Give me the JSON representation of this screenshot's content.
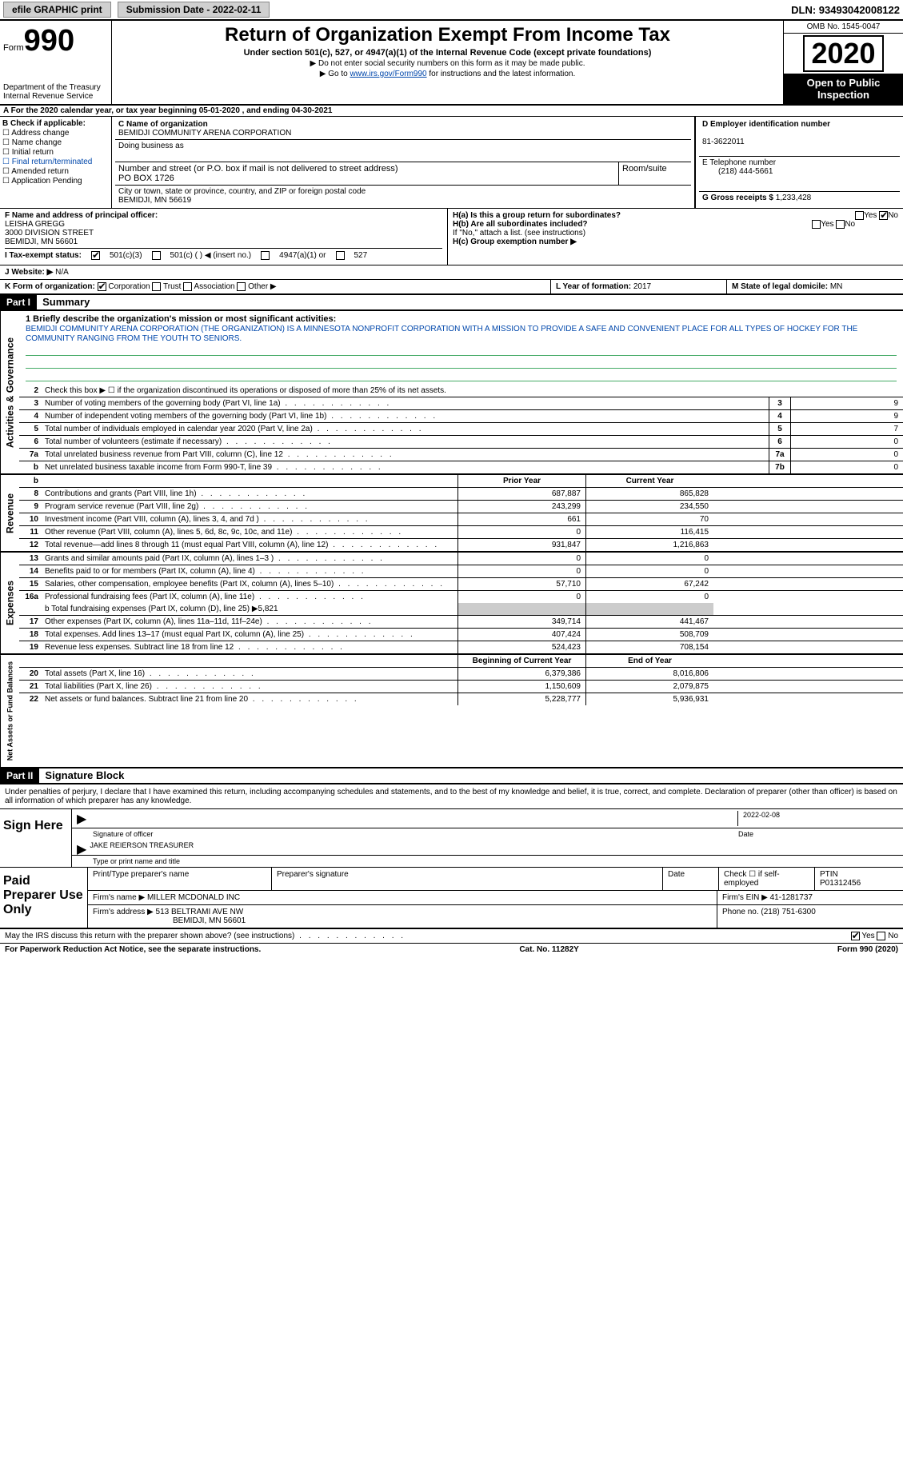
{
  "top": {
    "efile": "efile GRAPHIC print",
    "submission": "Submission Date - 2022-02-11",
    "dln": "DLN: 93493042008122"
  },
  "header": {
    "form_label": "Form",
    "form_num": "990",
    "title": "Return of Organization Exempt From Income Tax",
    "subtitle": "Under section 501(c), 527, or 4947(a)(1) of the Internal Revenue Code (except private foundations)",
    "note1": "▶ Do not enter social security numbers on this form as it may be made public.",
    "note2": "▶ Go to ",
    "link": "www.irs.gov/Form990",
    "note3": " for instructions and the latest information.",
    "dept": "Department of the Treasury\nInternal Revenue Service",
    "omb": "OMB No. 1545-0047",
    "year": "2020",
    "open": "Open to Public Inspection"
  },
  "rowA": "A For the 2020 calendar year, or tax year beginning 05-01-2020   , and ending 04-30-2021",
  "boxB": {
    "title": "B Check if applicable:",
    "items": [
      "☐ Address change",
      "☐ Name change",
      "☐ Initial return",
      "☐ Final return/terminated",
      "☐ Amended return",
      "☐ Application Pending"
    ]
  },
  "boxC": {
    "name_label": "C Name of organization",
    "name": "BEMIDJI COMMUNITY ARENA CORPORATION",
    "dba_label": "Doing business as",
    "addr_label": "Number and street (or P.O. box if mail is not delivered to street address)",
    "room_label": "Room/suite",
    "addr": "PO BOX 1726",
    "city_label": "City or town, state or province, country, and ZIP or foreign postal code",
    "city": "BEMIDJI, MN  56619"
  },
  "boxD": {
    "label": "D Employer identification number",
    "value": "81-3622011"
  },
  "boxE": {
    "label": "E Telephone number",
    "value": "(218) 444-5661"
  },
  "boxG": {
    "label": "G Gross receipts $",
    "value": "1,233,428"
  },
  "boxF": {
    "label": "F Name and address of principal officer:",
    "name": "LEISHA GREGG",
    "addr1": "3000 DIVISION STREET",
    "addr2": "BEMIDJI, MN  56601"
  },
  "boxH": {
    "a": "H(a)  Is this a group return for subordinates?",
    "b": "H(b)  Are all subordinates included?",
    "note": "If \"No,\" attach a list. (see instructions)",
    "c": "H(c)  Group exemption number ▶",
    "yes": "Yes",
    "no": "No"
  },
  "boxI": {
    "label": "I    Tax-exempt status:",
    "opts": [
      "501(c)(3)",
      "501(c) (  ) ◀ (insert no.)",
      "4947(a)(1) or",
      "527"
    ]
  },
  "boxJ": {
    "label": "J   Website: ▶",
    "value": "N/A"
  },
  "boxK": {
    "label": "K Form of organization:",
    "opts": [
      "Corporation",
      "Trust",
      "Association",
      "Other ▶"
    ]
  },
  "boxL": {
    "label": "L Year of formation:",
    "value": "2017"
  },
  "boxM": {
    "label": "M State of legal domicile:",
    "value": "MN"
  },
  "part1": {
    "header": "Part I",
    "title": "Summary",
    "mission_label": "1  Briefly describe the organization's mission or most significant activities:",
    "mission": "BEMIDJI COMMUNITY ARENA CORPORATION (THE ORGANIZATION) IS A MINNESOTA NONPROFIT CORPORATION WITH A MISSION TO PROVIDE A SAFE AND CONVENIENT PLACE FOR ALL TYPES OF HOCKEY FOR THE COMMUNITY RANGING FROM THE YOUTH TO SENIORS.",
    "line2": "Check this box ▶ ☐  if the organization discontinued its operations or disposed of more than 25% of its net assets.",
    "gov_lines": [
      {
        "n": "3",
        "label": "Number of voting members of the governing body (Part VI, line 1a)",
        "box": "3",
        "val": "9"
      },
      {
        "n": "4",
        "label": "Number of independent voting members of the governing body (Part VI, line 1b)",
        "box": "4",
        "val": "9"
      },
      {
        "n": "5",
        "label": "Total number of individuals employed in calendar year 2020 (Part V, line 2a)",
        "box": "5",
        "val": "7"
      },
      {
        "n": "6",
        "label": "Total number of volunteers (estimate if necessary)",
        "box": "6",
        "val": "0"
      },
      {
        "n": "7a",
        "label": "Total unrelated business revenue from Part VIII, column (C), line 12",
        "box": "7a",
        "val": "0"
      },
      {
        "n": "b",
        "label": "Net unrelated business taxable income from Form 990-T, line 39",
        "box": "7b",
        "val": "0"
      }
    ],
    "col_prior": "Prior Year",
    "col_current": "Current Year",
    "rev_lines": [
      {
        "n": "8",
        "label": "Contributions and grants (Part VIII, line 1h)",
        "p": "687,887",
        "c": "865,828"
      },
      {
        "n": "9",
        "label": "Program service revenue (Part VIII, line 2g)",
        "p": "243,299",
        "c": "234,550"
      },
      {
        "n": "10",
        "label": "Investment income (Part VIII, column (A), lines 3, 4, and 7d )",
        "p": "661",
        "c": "70"
      },
      {
        "n": "11",
        "label": "Other revenue (Part VIII, column (A), lines 5, 6d, 8c, 9c, 10c, and 11e)",
        "p": "0",
        "c": "116,415"
      },
      {
        "n": "12",
        "label": "Total revenue—add lines 8 through 11 (must equal Part VIII, column (A), line 12)",
        "p": "931,847",
        "c": "1,216,863"
      }
    ],
    "exp_lines": [
      {
        "n": "13",
        "label": "Grants and similar amounts paid (Part IX, column (A), lines 1–3 )",
        "p": "0",
        "c": "0"
      },
      {
        "n": "14",
        "label": "Benefits paid to or for members (Part IX, column (A), line 4)",
        "p": "0",
        "c": "0"
      },
      {
        "n": "15",
        "label": "Salaries, other compensation, employee benefits (Part IX, column (A), lines 5–10)",
        "p": "57,710",
        "c": "67,242"
      },
      {
        "n": "16a",
        "label": "Professional fundraising fees (Part IX, column (A), line 11e)",
        "p": "0",
        "c": "0"
      }
    ],
    "line16b": "b  Total fundraising expenses (Part IX, column (D), line 25) ▶5,821",
    "exp_lines2": [
      {
        "n": "17",
        "label": "Other expenses (Part IX, column (A), lines 11a–11d, 11f–24e)",
        "p": "349,714",
        "c": "441,467"
      },
      {
        "n": "18",
        "label": "Total expenses. Add lines 13–17 (must equal Part IX, column (A), line 25)",
        "p": "407,424",
        "c": "508,709"
      },
      {
        "n": "19",
        "label": "Revenue less expenses. Subtract line 18 from line 12",
        "p": "524,423",
        "c": "708,154"
      }
    ],
    "col_beg": "Beginning of Current Year",
    "col_end": "End of Year",
    "na_lines": [
      {
        "n": "20",
        "label": "Total assets (Part X, line 16)",
        "p": "6,379,386",
        "c": "8,016,806"
      },
      {
        "n": "21",
        "label": "Total liabilities (Part X, line 26)",
        "p": "1,150,609",
        "c": "2,079,875"
      },
      {
        "n": "22",
        "label": "Net assets or fund balances. Subtract line 21 from line 20",
        "p": "5,228,777",
        "c": "5,936,931"
      }
    ]
  },
  "part2": {
    "header": "Part II",
    "title": "Signature Block",
    "decl": "Under penalties of perjury, I declare that I have examined this return, including accompanying schedules and statements, and to the best of my knowledge and belief, it is true, correct, and complete. Declaration of preparer (other than officer) is based on all information of which preparer has any knowledge."
  },
  "sign": {
    "label": "Sign Here",
    "sig_label": "Signature of officer",
    "date_label": "Date",
    "date": "2022-02-08",
    "name": "JAKE REIERSON  TREASURER",
    "name_label": "Type or print name and title"
  },
  "prep": {
    "label": "Paid Preparer Use Only",
    "h1": "Print/Type preparer's name",
    "h2": "Preparer's signature",
    "h3": "Date",
    "h4_a": "Check ☐ if self-employed",
    "h4_b": "PTIN",
    "ptin": "P01312456",
    "firm_label": "Firm's name   ▶",
    "firm": "MILLER MCDONALD INC",
    "ein_label": "Firm's EIN ▶",
    "ein": "41-1281737",
    "addr_label": "Firm's address ▶",
    "addr1": "513 BELTRAMI AVE NW",
    "addr2": "BEMIDJI, MN  56601",
    "phone_label": "Phone no.",
    "phone": "(218) 751-6300"
  },
  "discuss": "May the IRS discuss this return with the preparer shown above? (see instructions)",
  "footer": {
    "left": "For Paperwork Reduction Act Notice, see the separate instructions.",
    "mid": "Cat. No. 11282Y",
    "right": "Form 990 (2020)"
  },
  "labels": {
    "activities_gov": "Activities & Governance",
    "revenue": "Revenue",
    "expenses": "Expenses",
    "netassets": "Net Assets or Fund Balances"
  }
}
